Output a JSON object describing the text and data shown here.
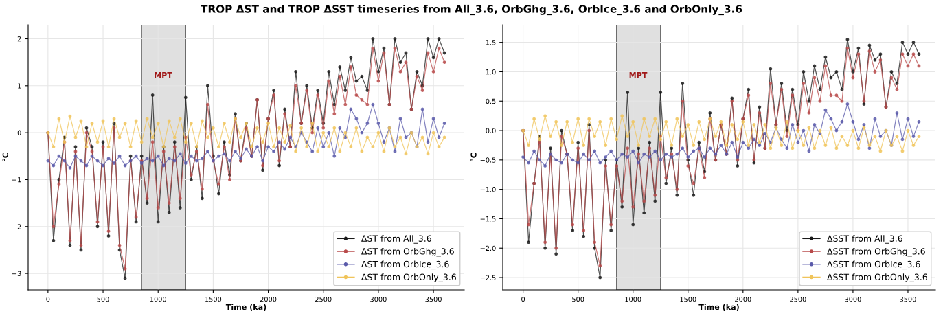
{
  "chart_data": [
    {
      "type": "line",
      "title": "TROP ΔST and TROP ΔSST timeseries from All_3.6, OrbGhg_3.6, OrbIce_3.6 and OrbOnly_3.6",
      "xlabel": "Time (ka)",
      "ylabel": "°C",
      "x": [
        0,
        50,
        100,
        150,
        200,
        250,
        300,
        350,
        400,
        450,
        500,
        550,
        600,
        650,
        700,
        750,
        800,
        850,
        900,
        950,
        1000,
        1050,
        1100,
        1150,
        1200,
        1250,
        1300,
        1350,
        1400,
        1450,
        1500,
        1550,
        1600,
        1650,
        1700,
        1750,
        1800,
        1850,
        1900,
        1950,
        2000,
        2050,
        2100,
        2150,
        2200,
        2250,
        2300,
        2350,
        2400,
        2450,
        2500,
        2550,
        2600,
        2650,
        2700,
        2750,
        2800,
        2850,
        2900,
        2950,
        3000,
        3050,
        3100,
        3150,
        3200,
        3250,
        3300,
        3350,
        3400,
        3450,
        3500,
        3550,
        3600
      ],
      "series": [
        {
          "name": "ΔST from All_3.6",
          "color": "#1a1a1a",
          "values": [
            0,
            -2.3,
            -1.0,
            -0.1,
            -2.4,
            -0.3,
            -2.5,
            0.1,
            -0.3,
            -2.0,
            -0.2,
            -2.2,
            0.2,
            -2.5,
            -3.1,
            -0.5,
            -1.9,
            -0.5,
            -1.5,
            0.8,
            -1.9,
            -0.3,
            -1.7,
            -0.2,
            -1.6,
            0.75,
            -1.0,
            -0.3,
            -1.4,
            1.0,
            -0.5,
            -1.3,
            -0.2,
            -0.9,
            0.4,
            -0.6,
            0.2,
            -0.5,
            0.7,
            -0.8,
            0.3,
            0.9,
            -0.7,
            0.5,
            -0.3,
            1.3,
            0.2,
            1.0,
            0.1,
            0.9,
            0.2,
            1.3,
            0.6,
            1.4,
            0.9,
            1.6,
            1.1,
            1.2,
            0.9,
            2.0,
            1.3,
            1.8,
            0.6,
            2.0,
            1.5,
            1.7,
            0.5,
            1.3,
            1.0,
            2.0,
            1.6,
            2.0,
            1.7
          ]
        },
        {
          "name": "ΔST from OrbGhg_3.6",
          "color": "#b84a4a",
          "values": [
            0,
            -2.0,
            -1.1,
            -0.2,
            -2.3,
            -0.4,
            -2.4,
            0.0,
            -0.4,
            -1.9,
            -0.3,
            -2.1,
            0.1,
            -2.4,
            -2.9,
            -0.6,
            -1.8,
            -0.6,
            -1.4,
            -0.2,
            -1.6,
            -0.4,
            -1.5,
            -0.3,
            -1.4,
            -0.1,
            -0.9,
            -0.4,
            -1.2,
            0.6,
            -0.6,
            -1.1,
            -0.3,
            -1.0,
            0.3,
            -0.6,
            0.1,
            -0.5,
            0.7,
            -0.7,
            0.3,
            0.8,
            -0.6,
            0.4,
            -0.3,
            1.0,
            0.2,
            0.9,
            0.0,
            0.8,
            0.1,
            1.1,
            0.4,
            1.2,
            0.6,
            1.4,
            0.8,
            0.7,
            0.6,
            1.8,
            1.1,
            1.7,
            0.6,
            1.8,
            1.3,
            1.5,
            0.5,
            1.2,
            0.9,
            1.7,
            1.3,
            1.8,
            1.5
          ]
        },
        {
          "name": "ΔST from OrbIce_3.6",
          "color": "#5a5aaa",
          "values": [
            -0.6,
            -0.7,
            -0.5,
            -0.6,
            -0.75,
            -0.5,
            -0.6,
            -0.7,
            -0.5,
            -0.6,
            -0.7,
            -0.55,
            -0.65,
            -0.5,
            -0.7,
            -0.6,
            -0.5,
            -0.65,
            -0.55,
            -0.6,
            -0.5,
            -0.7,
            -0.55,
            -0.6,
            -0.45,
            -0.65,
            -0.5,
            -0.6,
            -0.55,
            -0.4,
            -0.6,
            -0.5,
            -0.45,
            -0.6,
            -0.4,
            -0.55,
            -0.35,
            -0.5,
            -0.3,
            -0.6,
            -0.3,
            -0.4,
            -0.2,
            -0.35,
            -0.1,
            -0.3,
            0.0,
            -0.2,
            -0.4,
            0.1,
            -0.3,
            0.0,
            -0.5,
            0.1,
            -0.1,
            0.5,
            0.3,
            0.0,
            0.2,
            0.6,
            0.2,
            -0.2,
            0.1,
            -0.4,
            0.3,
            -0.1,
            0.0,
            -0.3,
            0.5,
            -0.2,
            0.3,
            -0.1,
            0.2
          ]
        },
        {
          "name": "ΔST from OrbOnly_3.6",
          "color": "#f0c45a",
          "values": [
            0.0,
            -0.3,
            0.3,
            -0.2,
            0.35,
            -0.1,
            0.25,
            -0.3,
            0.2,
            -0.2,
            0.25,
            -0.3,
            0.3,
            -0.1,
            0.2,
            -0.3,
            0.25,
            -0.2,
            0.3,
            -0.1,
            0.2,
            -0.3,
            0.25,
            -0.1,
            0.3,
            -0.2,
            0.2,
            -0.3,
            0.25,
            -0.1,
            0.1,
            -0.3,
            0.2,
            -0.2,
            0.3,
            -0.1,
            0.2,
            -0.3,
            0.1,
            -0.2,
            0.2,
            -0.3,
            0.1,
            -0.2,
            0.15,
            -0.4,
            0.1,
            -0.3,
            0.2,
            -0.4,
            0.0,
            -0.3,
            0.1,
            -0.4,
            0.0,
            -0.3,
            0.1,
            -0.4,
            -0.1,
            -0.3,
            0.0,
            -0.4,
            0.1,
            -0.3,
            -0.1,
            -0.45,
            0.0,
            -0.3,
            -0.1,
            -0.45,
            0.0,
            -0.3,
            -0.1
          ]
        }
      ],
      "xlim": [
        -180,
        3780
      ],
      "xticks": [
        0,
        500,
        1000,
        1500,
        2000,
        2500,
        3000,
        3500
      ],
      "ylim": [
        -3.35,
        2.3
      ],
      "yticks": [
        {
          "value": -3,
          "label": "−3"
        },
        {
          "value": -2,
          "label": "−2"
        },
        {
          "value": -1,
          "label": "−1"
        },
        0,
        1,
        2
      ],
      "bands": [
        {
          "axis": "x",
          "from": 850,
          "to": 1250,
          "color": "#e0e0e0"
        }
      ],
      "annotations": [
        "MPT"
      ],
      "grid": true,
      "legend": "bottom right",
      "marker": "circle",
      "line_style": "solid"
    },
    {
      "type": "line",
      "xlabel": "Time (ka)",
      "ylabel": "°C",
      "x": [
        0,
        50,
        100,
        150,
        200,
        250,
        300,
        350,
        400,
        450,
        500,
        550,
        600,
        650,
        700,
        750,
        800,
        850,
        900,
        950,
        1000,
        1050,
        1100,
        1150,
        1200,
        1250,
        1300,
        1350,
        1400,
        1450,
        1500,
        1550,
        1600,
        1650,
        1700,
        1750,
        1800,
        1850,
        1900,
        1950,
        2000,
        2050,
        2100,
        2150,
        2200,
        2250,
        2300,
        2350,
        2400,
        2450,
        2500,
        2550,
        2600,
        2650,
        2700,
        2750,
        2800,
        2850,
        2900,
        2950,
        3000,
        3050,
        3100,
        3150,
        3200,
        3250,
        3300,
        3350,
        3400,
        3450,
        3500,
        3550,
        3600
      ],
      "series": [
        {
          "name": "ΔSST from All_3.6",
          "color": "#1a1a1a",
          "values": [
            0,
            -1.9,
            -0.9,
            -0.1,
            -2.0,
            -0.3,
            -2.1,
            0.0,
            -0.4,
            -1.7,
            -0.2,
            -1.8,
            0.1,
            -2.0,
            -2.5,
            -0.5,
            -1.7,
            -0.5,
            -1.3,
            0.65,
            -1.6,
            -0.3,
            -1.4,
            -0.2,
            -1.2,
            0.65,
            -0.9,
            -0.3,
            -1.1,
            0.8,
            -0.5,
            -1.1,
            -0.2,
            -0.7,
            0.3,
            -0.5,
            0.1,
            -0.4,
            0.55,
            -0.6,
            0.2,
            0.7,
            -0.55,
            0.4,
            -0.3,
            1.05,
            0.1,
            0.8,
            0.0,
            0.7,
            0.1,
            1.0,
            0.5,
            1.1,
            0.7,
            1.25,
            0.9,
            1.0,
            0.7,
            1.55,
            1.0,
            1.4,
            0.45,
            1.45,
            1.2,
            1.3,
            0.4,
            1.0,
            0.8,
            1.5,
            1.3,
            1.5,
            1.3
          ]
        },
        {
          "name": "ΔSST from OrbGhg_3.6",
          "color": "#b84a4a",
          "values": [
            0,
            -1.6,
            -0.9,
            -0.2,
            -1.9,
            -0.4,
            -2.0,
            -0.1,
            -0.4,
            -1.6,
            -0.3,
            -1.7,
            0.0,
            -1.9,
            -2.3,
            -0.6,
            -1.6,
            -0.6,
            -1.2,
            -0.3,
            -1.3,
            -0.4,
            -1.2,
            -0.3,
            -1.1,
            -0.1,
            -0.8,
            -0.4,
            -1.0,
            0.5,
            -0.6,
            -0.9,
            -0.3,
            -0.8,
            0.2,
            -0.5,
            0.1,
            -0.4,
            0.5,
            -0.5,
            0.2,
            0.6,
            -0.5,
            0.3,
            -0.3,
            0.8,
            0.1,
            0.7,
            -0.1,
            0.6,
            0.0,
            0.8,
            0.3,
            0.9,
            0.5,
            1.1,
            0.6,
            0.6,
            0.5,
            1.4,
            0.9,
            1.3,
            0.5,
            1.35,
            1.0,
            1.2,
            0.4,
            0.9,
            0.7,
            1.3,
            1.1,
            1.3,
            1.1
          ]
        },
        {
          "name": "ΔSST from OrbIce_3.6",
          "color": "#5a5aaa",
          "values": [
            -0.45,
            -0.55,
            -0.35,
            -0.5,
            -0.6,
            -0.4,
            -0.5,
            -0.55,
            -0.4,
            -0.5,
            -0.55,
            -0.4,
            -0.5,
            -0.35,
            -0.55,
            -0.45,
            -0.35,
            -0.5,
            -0.4,
            -0.45,
            -0.35,
            -0.55,
            -0.4,
            -0.45,
            -0.35,
            -0.5,
            -0.4,
            -0.45,
            -0.4,
            -0.3,
            -0.45,
            -0.35,
            -0.3,
            -0.45,
            -0.3,
            -0.4,
            -0.25,
            -0.4,
            -0.2,
            -0.45,
            -0.2,
            -0.3,
            -0.15,
            -0.25,
            -0.05,
            -0.2,
            0.05,
            -0.15,
            -0.3,
            0.1,
            -0.2,
            0.0,
            -0.35,
            0.1,
            -0.05,
            0.35,
            0.2,
            0.0,
            0.15,
            0.45,
            0.15,
            -0.15,
            0.1,
            -0.3,
            0.2,
            -0.1,
            0.0,
            -0.25,
            0.3,
            -0.15,
            0.2,
            -0.1,
            0.15
          ]
        },
        {
          "name": "ΔSST from OrbOnly_3.6",
          "color": "#f0c45a",
          "values": [
            0.0,
            -0.25,
            0.2,
            -0.15,
            0.25,
            -0.1,
            0.15,
            -0.25,
            0.15,
            -0.2,
            0.2,
            -0.25,
            0.2,
            -0.1,
            0.15,
            -0.25,
            0.2,
            -0.15,
            0.25,
            -0.1,
            0.15,
            -0.25,
            0.2,
            -0.1,
            0.2,
            -0.15,
            0.15,
            -0.25,
            0.2,
            -0.1,
            0.1,
            -0.25,
            0.15,
            -0.15,
            0.2,
            -0.1,
            0.15,
            -0.25,
            0.1,
            -0.15,
            0.15,
            -0.25,
            0.1,
            -0.2,
            0.1,
            -0.3,
            0.05,
            -0.25,
            0.15,
            -0.3,
            0.0,
            -0.25,
            0.05,
            -0.3,
            0.0,
            -0.25,
            0.05,
            -0.3,
            -0.1,
            -0.25,
            0.0,
            -0.3,
            0.05,
            -0.25,
            -0.1,
            -0.35,
            0.0,
            -0.25,
            -0.1,
            -0.35,
            0.0,
            -0.25,
            -0.1
          ]
        }
      ],
      "xlim": [
        -185,
        3750
      ],
      "xticks": [
        0,
        500,
        1000,
        1500,
        2000,
        2500,
        3000,
        3500
      ],
      "ylim": [
        -2.71,
        1.8
      ],
      "yticks": [
        {
          "value": -2.5,
          "label": "−2.5"
        },
        {
          "value": -2,
          "label": "−2.0"
        },
        {
          "value": -1.5,
          "label": "−1.5"
        },
        {
          "value": -1,
          "label": "−1.0"
        },
        {
          "value": -0.5,
          "label": "−0.5"
        },
        {
          "value": 0,
          "label": "0.0"
        },
        {
          "value": 0.5,
          "label": "0.5"
        },
        {
          "value": 1,
          "label": "1.0"
        },
        {
          "value": 1.5,
          "label": "1.5"
        }
      ],
      "bands": [
        {
          "axis": "x",
          "from": 850,
          "to": 1250,
          "color": "#e0e0e0"
        }
      ],
      "annotations": [
        "MPT"
      ],
      "grid": true,
      "legend": "bottom right",
      "marker": "circle",
      "line_style": "solid"
    }
  ]
}
